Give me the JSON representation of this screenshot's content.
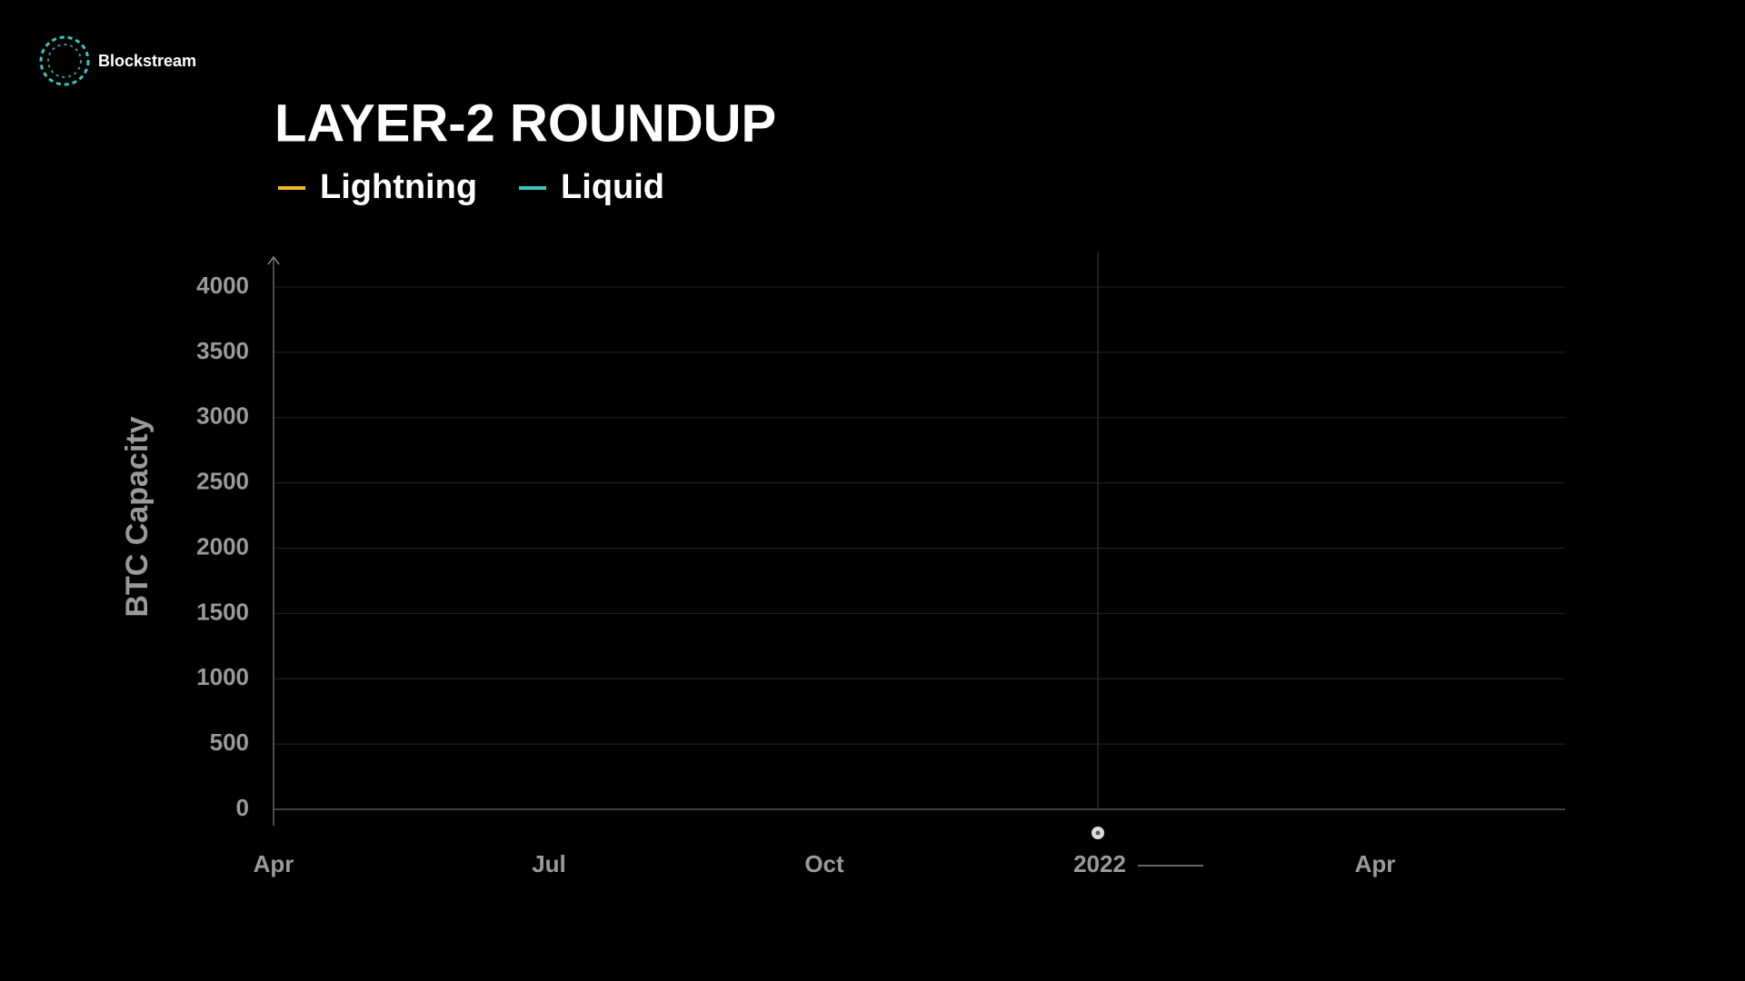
{
  "brand": "Blockstream",
  "chart_data": {
    "type": "line",
    "title": "LAYER-2 ROUNDUP",
    "y_label": "BTC Capacity",
    "categories": [
      "Apr",
      "Jul",
      "Oct",
      "2022",
      "Apr"
    ],
    "series": [
      {
        "name": "Lightning",
        "color": "#f2b630",
        "values": [
          null,
          null,
          null,
          null,
          null
        ]
      },
      {
        "name": "Liquid",
        "color": "#3ec6bd",
        "values": [
          null,
          null,
          null,
          null,
          null
        ]
      }
    ],
    "ylim": [
      0,
      4000
    ],
    "yticks": [
      0,
      500,
      1000,
      1500,
      2000,
      2500,
      3000,
      3500,
      4000
    ],
    "grid": true
  }
}
